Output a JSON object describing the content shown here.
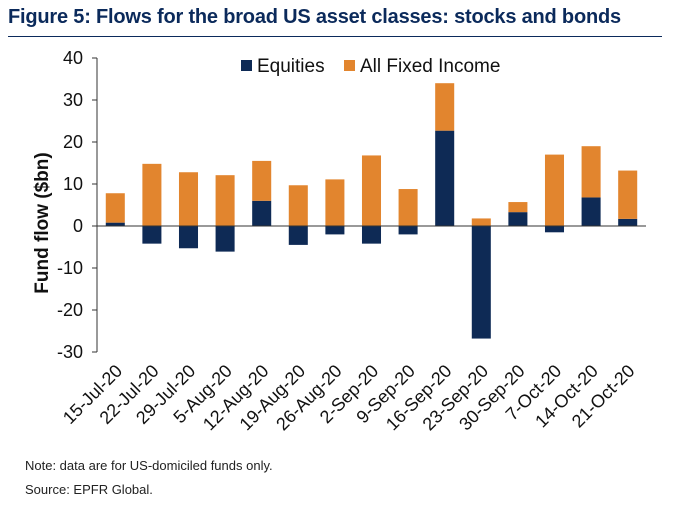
{
  "header": {
    "title": "Figure 5: Flows for the broad US asset classes: stocks and bonds"
  },
  "notes": {
    "note": "Note: data are for US-domiciled funds only.",
    "source": "Source: EPFR Global."
  },
  "colors": {
    "equities": "#0e2a55",
    "fixed_income": "#e2852e",
    "axis": "#333333"
  },
  "chart_data": {
    "type": "bar",
    "stacked": true,
    "title": "Flows for the broad US asset classes: stocks and bonds",
    "xlabel": "",
    "ylabel": "Fund flow ($bn)",
    "ylim": [
      -30,
      40
    ],
    "yticks": [
      40,
      30,
      20,
      10,
      0,
      -10,
      -20,
      -30
    ],
    "legend_position": "top",
    "categories": [
      "15-Jul-20",
      "22-Jul-20",
      "29-Jul-20",
      "5-Aug-20",
      "12-Aug-20",
      "19-Aug-20",
      "26-Aug-20",
      "2-Sep-20",
      "9-Sep-20",
      "16-Sep-20",
      "23-Sep-20",
      "30-Sep-20",
      "7-Oct-20",
      "14-Oct-20",
      "21-Oct-20"
    ],
    "series": [
      {
        "name": "Equities",
        "values": [
          0.8,
          -4.2,
          -5.3,
          -6.1,
          6.0,
          -4.5,
          -2.0,
          -4.2,
          -2.0,
          22.7,
          -26.8,
          3.3,
          -1.5,
          6.8,
          1.7
        ]
      },
      {
        "name": "All Fixed Income",
        "values": [
          7.0,
          14.8,
          12.8,
          12.1,
          9.5,
          9.7,
          11.1,
          16.8,
          8.8,
          11.3,
          1.8,
          2.4,
          17.0,
          12.2,
          11.5
        ]
      }
    ]
  }
}
